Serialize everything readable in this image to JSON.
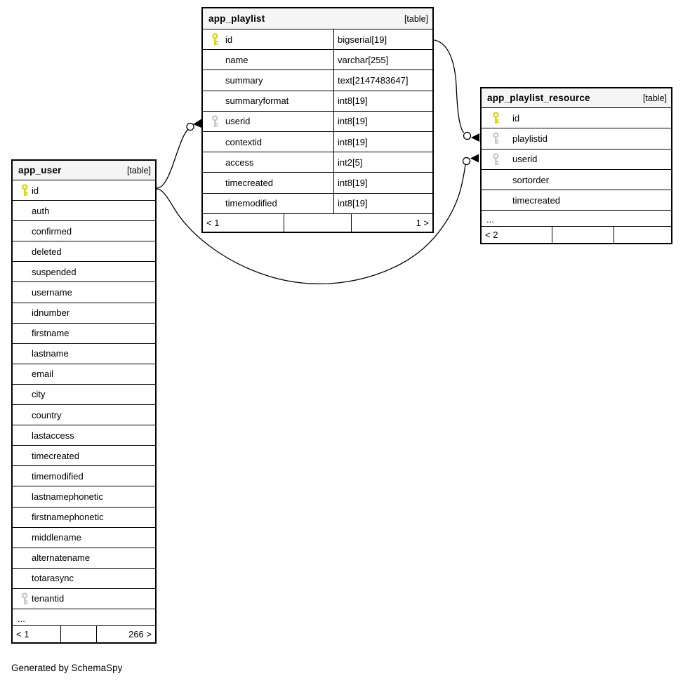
{
  "credit": "Generated by SchemaSpy",
  "colors": {
    "primary_key": "#d8d400",
    "foreign_key": "#c6c6c6",
    "header_bg": "#f5f5f5",
    "border": "#000000"
  },
  "tables": [
    {
      "name": "app_playlist",
      "tag": "[table]",
      "has_types": true,
      "columns": [
        {
          "name": "id",
          "type": "bigserial[19]",
          "key": "primary"
        },
        {
          "name": "name",
          "type": "varchar[255]",
          "key": "none"
        },
        {
          "name": "summary",
          "type": "text[2147483647]",
          "key": "none"
        },
        {
          "name": "summaryformat",
          "type": "int8[19]",
          "key": "none"
        },
        {
          "name": "userid",
          "type": "int8[19]",
          "key": "foreign"
        },
        {
          "name": "contextid",
          "type": "int8[19]",
          "key": "none"
        },
        {
          "name": "access",
          "type": "int2[5]",
          "key": "none"
        },
        {
          "name": "timecreated",
          "type": "int8[19]",
          "key": "none"
        },
        {
          "name": "timemodified",
          "type": "int8[19]",
          "key": "none"
        }
      ],
      "ellipsis": "",
      "footer": {
        "left": "< 1",
        "middle": "",
        "right": "1 >"
      }
    },
    {
      "name": "app_playlist_resource",
      "tag": "[table]",
      "has_types": false,
      "columns": [
        {
          "name": "id",
          "key": "primary"
        },
        {
          "name": "playlistid",
          "key": "foreign"
        },
        {
          "name": "userid",
          "key": "foreign"
        },
        {
          "name": "sortorder",
          "key": "none"
        },
        {
          "name": "timecreated",
          "key": "none"
        }
      ],
      "ellipsis": "...",
      "footer": {
        "left": "< 2",
        "middle": "",
        "right": ""
      }
    },
    {
      "name": "app_user",
      "tag": "[table]",
      "has_types": false,
      "columns": [
        {
          "name": "id",
          "key": "primary"
        },
        {
          "name": "auth",
          "key": "none"
        },
        {
          "name": "confirmed",
          "key": "none"
        },
        {
          "name": "deleted",
          "key": "none"
        },
        {
          "name": "suspended",
          "key": "none"
        },
        {
          "name": "username",
          "key": "none"
        },
        {
          "name": "idnumber",
          "key": "none"
        },
        {
          "name": "firstname",
          "key": "none"
        },
        {
          "name": "lastname",
          "key": "none"
        },
        {
          "name": "email",
          "key": "none"
        },
        {
          "name": "city",
          "key": "none"
        },
        {
          "name": "country",
          "key": "none"
        },
        {
          "name": "lastaccess",
          "key": "none"
        },
        {
          "name": "timecreated",
          "key": "none"
        },
        {
          "name": "timemodified",
          "key": "none"
        },
        {
          "name": "lastnamephonetic",
          "key": "none"
        },
        {
          "name": "firstnamephonetic",
          "key": "none"
        },
        {
          "name": "middlename",
          "key": "none"
        },
        {
          "name": "alternatename",
          "key": "none"
        },
        {
          "name": "totarasync",
          "key": "none"
        },
        {
          "name": "tenantid",
          "key": "foreign"
        }
      ],
      "ellipsis": "...",
      "footer": {
        "left": "< 1",
        "middle": "",
        "right": "266 >"
      }
    }
  ],
  "relationships": [
    {
      "from": "app_user.id",
      "to": "app_playlist.userid"
    },
    {
      "from": "app_user.id",
      "to": "app_playlist_resource.userid"
    },
    {
      "from": "app_playlist.id",
      "to": "app_playlist_resource.playlistid"
    }
  ]
}
